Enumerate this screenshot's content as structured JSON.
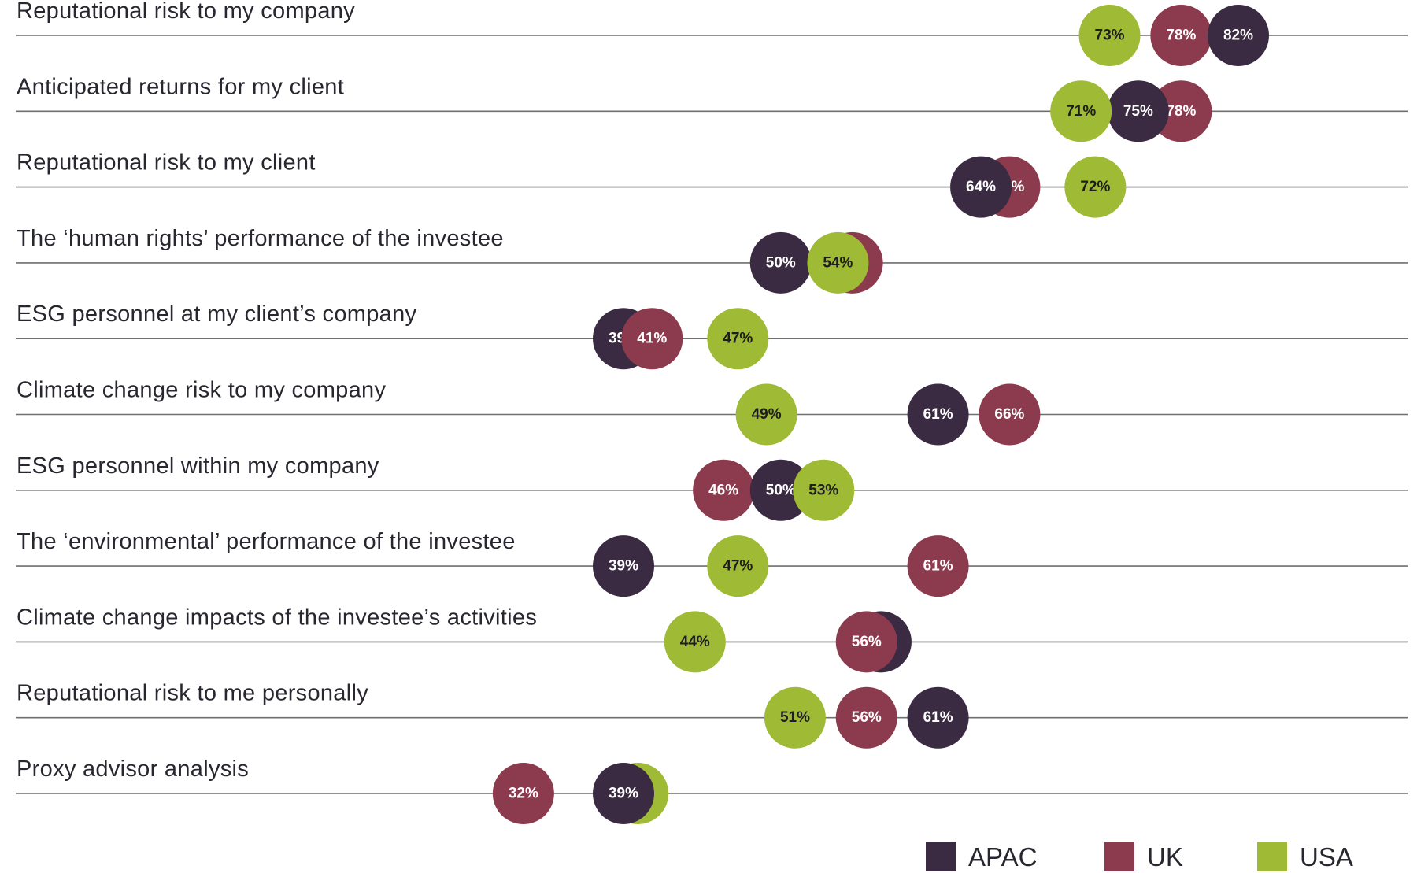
{
  "chart_data": {
    "type": "scatter",
    "title": "",
    "xlabel": "",
    "ylabel": "",
    "xlim": [
      0,
      100
    ],
    "series_order": [
      "APAC",
      "UK",
      "USA"
    ],
    "colors": {
      "APAC": "#3a2b42",
      "UK": "#8c3a4e",
      "USA": "#9fba34"
    },
    "text_colors": {
      "APAC": "#ffffff",
      "UK": "#ffffff",
      "USA": "#1e1e1e"
    },
    "categories": [
      "Reputational risk to my company",
      "Anticipated returns for my client",
      "Reputational risk to my client",
      "The ‘human rights’ performance of the investee",
      "ESG personnel at my client’s company",
      "Climate change risk to my company",
      "ESG personnel within my company",
      "The ‘environmental’ performance of the investee",
      "Climate change impacts of the investee’s activities",
      "Reputational risk to me personally",
      "Proxy advisor analysis"
    ],
    "series": [
      {
        "name": "APAC",
        "values": [
          82,
          75,
          64,
          50,
          39,
          61,
          50,
          39,
          57,
          61,
          39
        ]
      },
      {
        "name": "UK",
        "values": [
          78,
          78,
          66,
          55,
          41,
          66,
          46,
          61,
          56,
          56,
          32
        ]
      },
      {
        "name": "USA",
        "values": [
          73,
          71,
          72,
          54,
          47,
          49,
          53,
          47,
          44,
          51,
          40
        ]
      }
    ],
    "draw_order": [
      [
        "USA",
        "UK",
        "APAC"
      ],
      [
        "UK",
        "APAC",
        "USA"
      ],
      [
        "UK",
        "APAC",
        "USA"
      ],
      [
        "UK",
        "APAC",
        "USA"
      ],
      [
        "APAC",
        "UK",
        "USA"
      ],
      [
        "USA",
        "APAC",
        "UK"
      ],
      [
        "UK",
        "APAC",
        "USA"
      ],
      [
        "APAC",
        "USA",
        "UK"
      ],
      [
        "APAC",
        "UK",
        "USA"
      ],
      [
        "USA",
        "UK",
        "APAC"
      ],
      [
        "USA",
        "UK",
        "APAC"
      ]
    ],
    "labels": [
      [
        "82%",
        "78%",
        "73%"
      ],
      [
        "75%",
        "78%",
        "71%"
      ],
      [
        "64%",
        "66%",
        "72%"
      ],
      [
        "50%",
        "55%",
        "54%"
      ],
      [
        "39%",
        "41%",
        "47%"
      ],
      [
        "61%",
        "66%",
        "49%"
      ],
      [
        "50%",
        "46%",
        "53%"
      ],
      [
        "39%",
        "61%",
        "47%"
      ],
      [
        "57%",
        "56%",
        "44%"
      ],
      [
        "61%",
        "56%",
        "51%"
      ],
      [
        "39%",
        "32%",
        "40%"
      ]
    ],
    "legend": [
      "APAC",
      "UK",
      "USA"
    ],
    "legend_position": "bottom-right"
  }
}
